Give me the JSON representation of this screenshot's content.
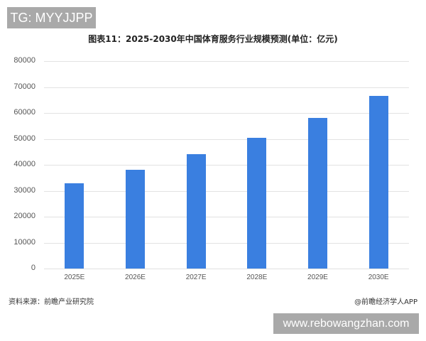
{
  "overlay": {
    "tg_label": "TG: MYYJJPP",
    "site_label": "www.rebowangzhan.com"
  },
  "chart_data": {
    "type": "bar",
    "title": "图表11：2025-2030年中国体育服务行业规模预测(单位：亿元)",
    "xlabel": "",
    "ylabel": "",
    "categories": [
      "2025E",
      "2026E",
      "2027E",
      "2028E",
      "2029E",
      "2030E"
    ],
    "values": [
      33000,
      38000,
      44000,
      50500,
      58000,
      66700
    ],
    "ylim": [
      0,
      80000
    ],
    "yticks": [
      "0",
      "10000",
      "20000",
      "30000",
      "40000",
      "50000",
      "60000",
      "70000",
      "80000"
    ],
    "grid": true,
    "bar_color": "#3a7fe0",
    "legend": null
  },
  "footer": {
    "source": "资料来源：前瞻产业研究院",
    "brand": "@前瞻经济学人APP"
  }
}
